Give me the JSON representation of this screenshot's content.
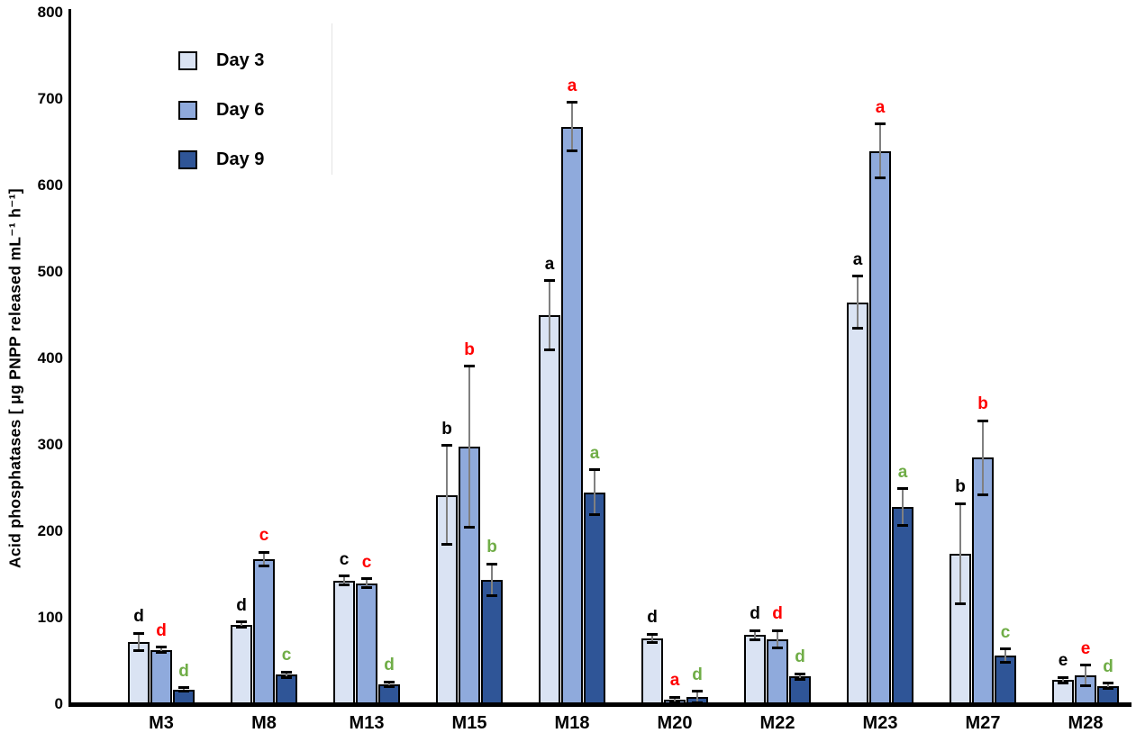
{
  "chart_data": {
    "type": "bar",
    "title": "",
    "xlabel": "",
    "ylabel": "Acid phosphatases [ μg PNPP released mL⁻¹ h⁻¹]",
    "ylim": [
      0,
      800
    ],
    "yticks": [
      0,
      100,
      200,
      300,
      400,
      500,
      600,
      700,
      800
    ],
    "grid": false,
    "legend_position": "top-left",
    "categories": [
      "M3",
      "M8",
      "M13",
      "M15",
      "M18",
      "M20",
      "M22",
      "M23",
      "M27",
      "M28"
    ],
    "series": [
      {
        "name": "Day 3",
        "color": "#dae3f3",
        "letter_color": "#000000",
        "values": [
          72,
          92,
          143,
          242,
          450,
          76,
          80,
          465,
          174,
          28
        ],
        "errors": [
          10,
          3,
          5,
          57,
          40,
          5,
          5,
          30,
          58,
          3
        ],
        "letters": [
          "d",
          "d",
          "c",
          "b",
          "a",
          "d",
          "d",
          "a",
          "b",
          "e"
        ]
      },
      {
        "name": "Day 6",
        "color": "#8faadc",
        "letter_color": "#ff0000",
        "values": [
          63,
          168,
          140,
          298,
          668,
          5,
          75,
          640,
          285,
          33
        ],
        "errors": [
          3,
          8,
          5,
          93,
          28,
          3,
          10,
          31,
          43,
          12
        ],
        "letters": [
          "d",
          "c",
          "c",
          "b",
          "a",
          "a",
          "d",
          "a",
          "b",
          "e"
        ]
      },
      {
        "name": "Day 9",
        "color": "#2f5597",
        "letter_color": "#70ad47",
        "values": [
          17,
          34,
          23,
          144,
          245,
          8,
          32,
          228,
          56,
          21
        ],
        "errors": [
          2,
          3,
          3,
          18,
          26,
          7,
          3,
          21,
          8,
          3
        ],
        "letters": [
          "d",
          "c",
          "d",
          "b",
          "a",
          "d",
          "d",
          "a",
          "c",
          "d"
        ]
      }
    ],
    "error_bar_line_color": "#808080",
    "error_bar_cap_color": "#000000",
    "bar_border_color": "#000000",
    "axis_color": "#000000"
  }
}
